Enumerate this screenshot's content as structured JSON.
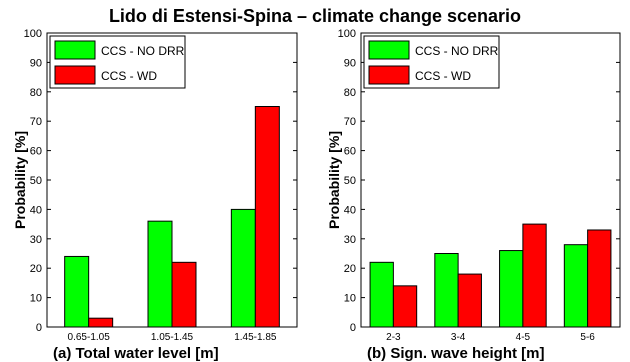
{
  "title": "Lido di Estensi-Spina – climate change scenario",
  "chart_data": [
    {
      "type": "bar",
      "xlabel": "(a) Total water level [m]",
      "ylabel": "Probability [%]",
      "ylim": [
        0,
        100
      ],
      "yticks": [
        "0",
        "10",
        "20",
        "30",
        "40",
        "50",
        "60",
        "70",
        "80",
        "90",
        "100"
      ],
      "categories": [
        "0.65-1.05",
        "1.05-1.45",
        "1.45-1.85"
      ],
      "legend_position": "top-left",
      "series": [
        {
          "name": "CCS - NO DRR",
          "color": "#00ff00",
          "values": [
            24,
            36,
            40
          ]
        },
        {
          "name": "CCS - WD",
          "color": "#ff0000",
          "values": [
            3,
            22,
            75
          ]
        }
      ]
    },
    {
      "type": "bar",
      "xlabel": "(b) Sign. wave height [m]",
      "ylabel": "Probability [%]",
      "ylim": [
        0,
        100
      ],
      "yticks": [
        "0",
        "10",
        "20",
        "30",
        "40",
        "50",
        "60",
        "70",
        "80",
        "90",
        "100"
      ],
      "categories": [
        "2-3",
        "3-4",
        "4-5",
        "5-6"
      ],
      "legend_position": "top-left",
      "series": [
        {
          "name": "CCS - NO DRR",
          "color": "#00ff00",
          "values": [
            22,
            25,
            26,
            28
          ]
        },
        {
          "name": "CCS - WD",
          "color": "#ff0000",
          "values": [
            14,
            18,
            35,
            33
          ]
        }
      ]
    }
  ]
}
